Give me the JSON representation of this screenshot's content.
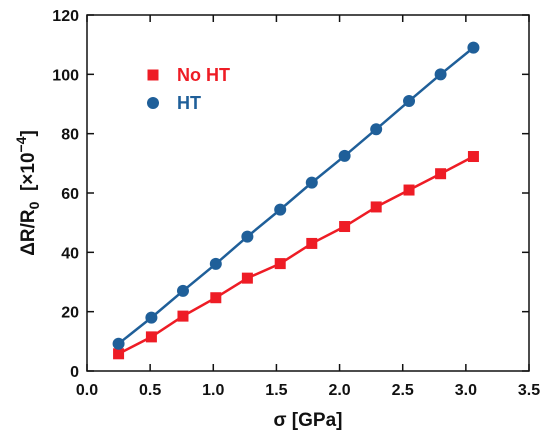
{
  "chart_data": {
    "type": "line",
    "xlabel": "σ [GPa]",
    "ylabel": {
      "prefix": "ΔR/R",
      "subscript": "0",
      "unit_open": "  [×10",
      "exponent": "−4",
      "unit_close": "]"
    },
    "xlim": [
      0.0,
      3.5
    ],
    "ylim": [
      0,
      120
    ],
    "xticks": [
      "0.0",
      "0.5",
      "1.0",
      "1.5",
      "2.0",
      "2.5",
      "3.0",
      "3.5"
    ],
    "yticks": [
      "0",
      "20",
      "40",
      "60",
      "80",
      "100",
      "120"
    ],
    "x": [
      0.25,
      0.51,
      0.76,
      1.02,
      1.27,
      1.53,
      1.78,
      2.04,
      2.29,
      2.55,
      2.8,
      3.06
    ],
    "series": [
      {
        "name": "No HT",
        "marker": "square",
        "marker_color": "#ee1c25",
        "line_color": "#ee1c25",
        "values": [
          5.8,
          11.5,
          18.5,
          24.7,
          31.3,
          36.2,
          43.0,
          48.7,
          55.3,
          61.0,
          66.5,
          72.3
        ]
      },
      {
        "name": "HT",
        "marker": "circle",
        "marker_color": "#1f5f99",
        "line_color": "#1f5f99",
        "values": [
          9.2,
          18.0,
          27.0,
          36.1,
          45.3,
          54.4,
          63.5,
          72.5,
          81.5,
          91.0,
          100.0,
          109.0
        ]
      }
    ],
    "grid": false,
    "legend_position": "top-left"
  }
}
